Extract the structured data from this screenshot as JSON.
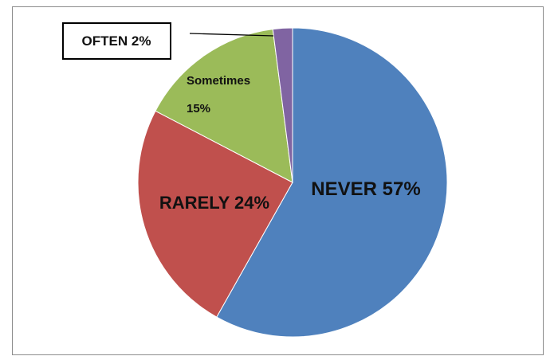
{
  "chart_data": {
    "type": "pie",
    "categories": [
      "NEVER",
      "RARELY",
      "Sometimes",
      "OFTEN"
    ],
    "values": [
      57,
      24,
      15,
      2
    ],
    "labels": [
      "NEVER 57%",
      "RARELY 24%",
      "Sometimes 15%",
      "OFTEN 2%"
    ],
    "colors": [
      "#4f81bd",
      "#c0504d",
      "#9bbb59",
      "#8064a2"
    ],
    "title": "",
    "legend": "none",
    "start_angle": "12 o'clock, clockwise"
  }
}
